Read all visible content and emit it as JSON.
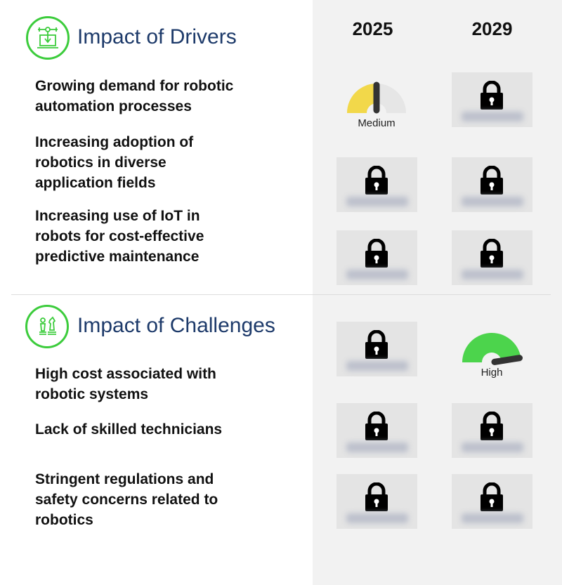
{
  "columns": [
    "2025",
    "2029"
  ],
  "drivers": {
    "title": "Impact of Drivers",
    "icon": "robot-arm-laptop-icon",
    "items": [
      {
        "label": "Growing demand for robotic automation processes",
        "2025": {
          "type": "gauge",
          "label": "Medium",
          "level": 0.5,
          "color": "#f2d84a"
        },
        "2029": {
          "type": "locked"
        }
      },
      {
        "label": "Increasing adoption of robotics in diverse application fields",
        "2025": {
          "type": "locked"
        },
        "2029": {
          "type": "locked"
        }
      },
      {
        "label": "Increasing use of IoT in robots for cost-effective predictive maintenance",
        "2025": {
          "type": "locked"
        },
        "2029": {
          "type": "locked"
        }
      }
    ]
  },
  "challenges": {
    "title": "Impact of Challenges",
    "icon": "chess-pieces-icon",
    "items": [
      {
        "label": "High cost associated with robotic systems",
        "2025": {
          "type": "locked"
        },
        "2029": {
          "type": "gauge",
          "label": "High",
          "level": 0.95,
          "color": "#4cd44c"
        }
      },
      {
        "label": "Lack of skilled technicians",
        "2025": {
          "type": "locked"
        },
        "2029": {
          "type": "locked"
        }
      },
      {
        "label": "Stringent regulations and safety concerns related to robotics",
        "2025": {
          "type": "locked"
        },
        "2029": {
          "type": "locked"
        }
      }
    ]
  },
  "colors": {
    "accent": "#3ccc3c",
    "title": "#1d3a6a",
    "panel": "#f2f2f2",
    "gauge_track": "#e6e6e6",
    "needle": "#333333"
  }
}
